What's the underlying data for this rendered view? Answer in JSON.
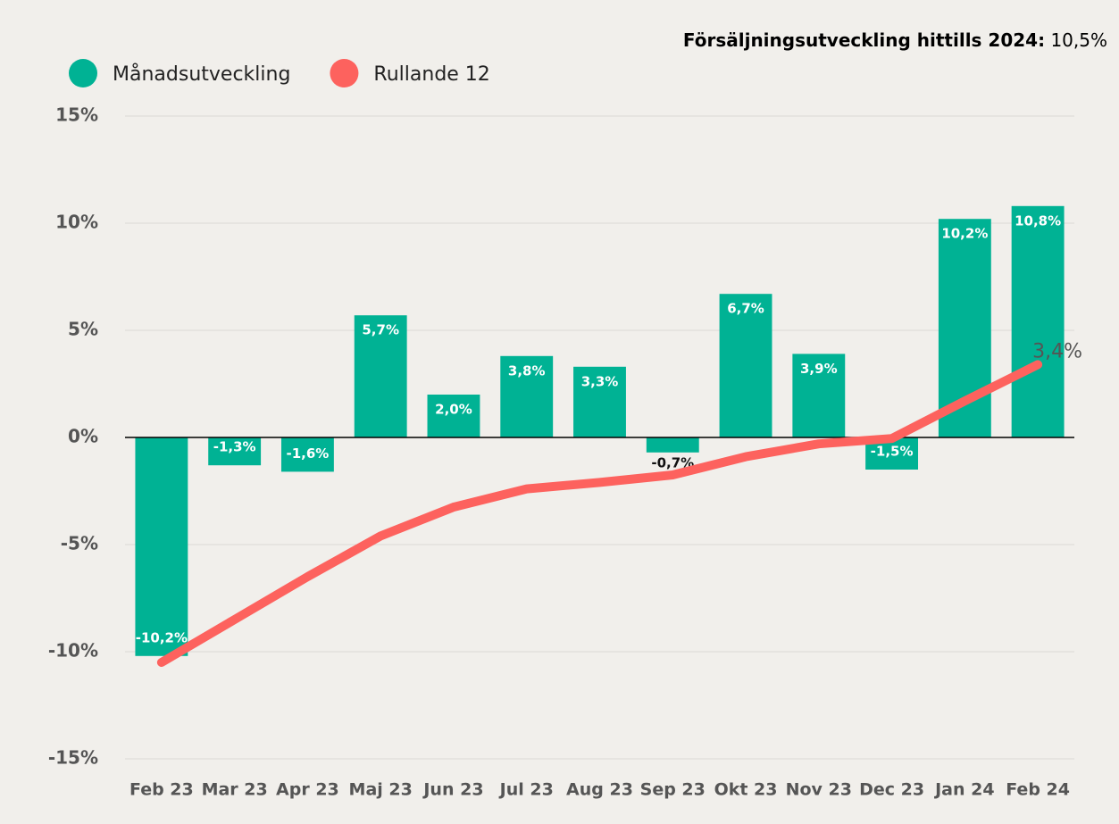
{
  "chart_data": {
    "type": "bar-line",
    "annotation": {
      "label": "Försäljningsutveckling hittills 2024:",
      "value": "10,5%"
    },
    "categories": [
      "Feb 23",
      "Mar 23",
      "Apr 23",
      "Maj 23",
      "Jun 23",
      "Jul 23",
      "Aug 23",
      "Sep 23",
      "Okt 23",
      "Nov 23",
      "Dec 23",
      "Jan 24",
      "Feb 24"
    ],
    "series": [
      {
        "name": "Månadsutveckling",
        "type": "bar",
        "color": "#00b294",
        "values": [
          -10.2,
          -1.3,
          -1.6,
          5.7,
          2.0,
          3.8,
          3.3,
          -0.7,
          6.7,
          3.9,
          -1.5,
          10.2,
          10.8
        ],
        "value_labels": [
          "-10,2%",
          "-1,3%",
          "-1,6%",
          "5,7%",
          "2,0%",
          "3,8%",
          "3,3%",
          "-0,7%",
          "6,7%",
          "3,9%",
          "-1,5%",
          "10,2%",
          "10,8%"
        ]
      },
      {
        "name": "Rullande 12",
        "type": "line",
        "color": "#fd625e",
        "values": [
          -10.5,
          -8.5,
          -6.5,
          -4.6,
          -3.25,
          -2.4,
          -2.1,
          -1.75,
          -0.9,
          -0.3,
          -0.05,
          1.7,
          3.4
        ],
        "value_labels": [
          null,
          null,
          null,
          null,
          null,
          null,
          null,
          null,
          null,
          null,
          null,
          null,
          "3,4%"
        ]
      }
    ],
    "ylim": [
      -15,
      15
    ],
    "yticks": [
      {
        "value": -15,
        "label": "-15%"
      },
      {
        "value": -10,
        "label": "-10%"
      },
      {
        "value": -5,
        "label": "-5%"
      },
      {
        "value": 0,
        "label": "0%"
      },
      {
        "value": 5,
        "label": "5%"
      },
      {
        "value": 10,
        "label": "10%"
      },
      {
        "value": 15,
        "label": "15%"
      }
    ],
    "grid": true
  }
}
